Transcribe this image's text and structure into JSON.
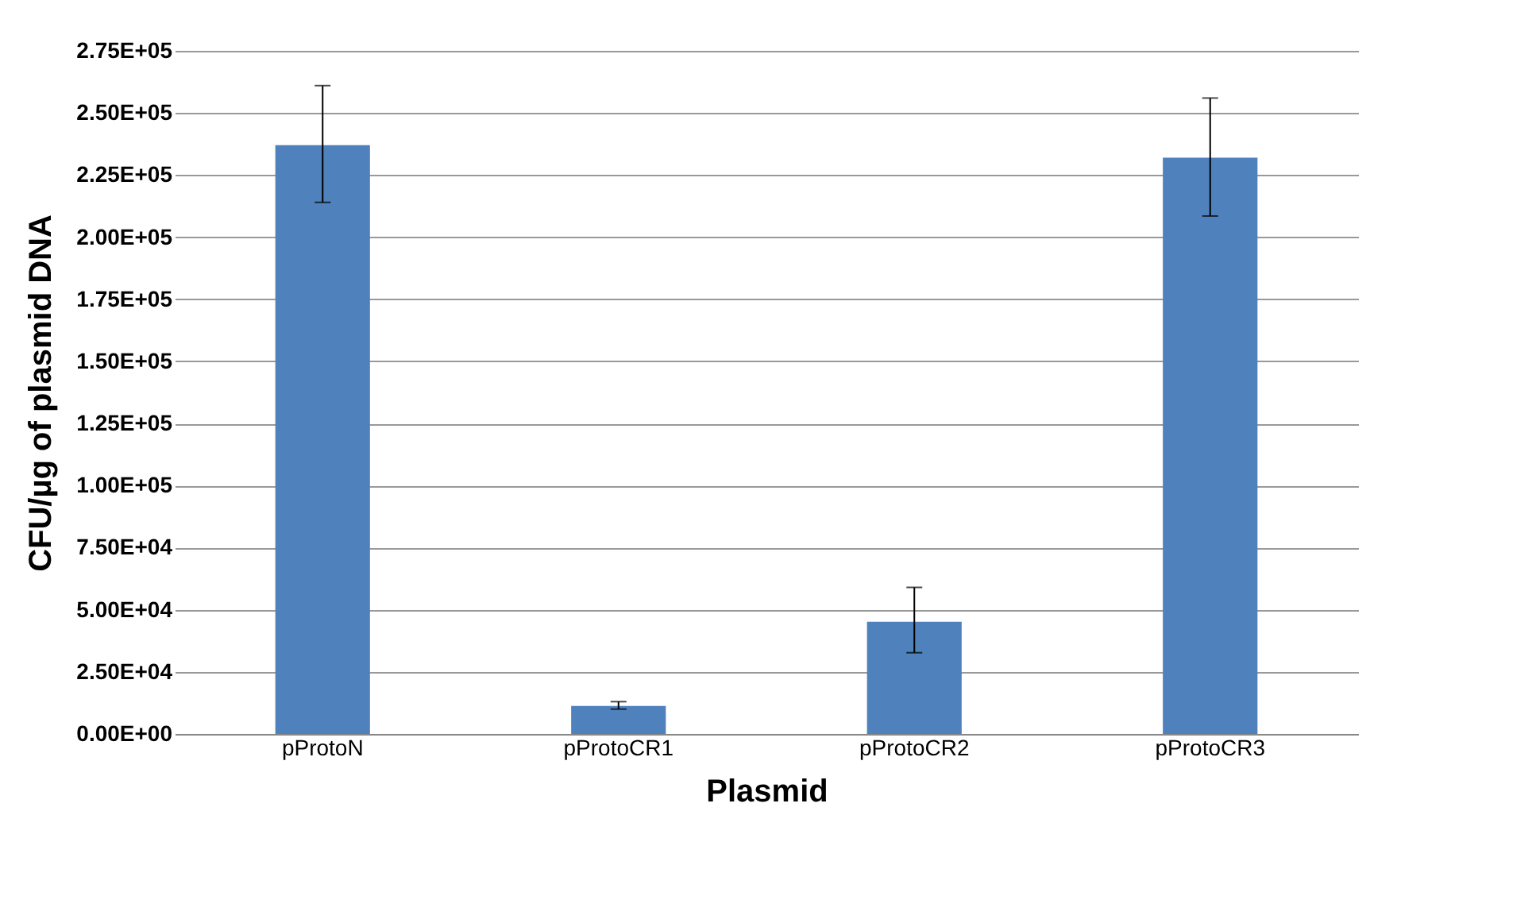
{
  "chart_data": {
    "type": "bar",
    "xlabel": "Plasmid",
    "ylabel": "CFU/µg of plasmid DNA",
    "categories": [
      "pProtoN",
      "pProtoCR1",
      "pProtoCR2",
      "pProtoCR3"
    ],
    "values": [
      237000,
      11300,
      45200,
      232000
    ],
    "errors": [
      [
        214000,
        261000
      ],
      [
        10000,
        13000
      ],
      [
        32700,
        59000
      ],
      [
        208500,
        256000
      ]
    ],
    "color": "#4f81bd",
    "ylim": [
      0,
      275000
    ],
    "yticks": [
      {
        "value": 0,
        "label": "0.00E+00"
      },
      {
        "value": 25000,
        "label": "2.50E+04"
      },
      {
        "value": 50000,
        "label": "5.00E+04"
      },
      {
        "value": 75000,
        "label": "7.50E+04"
      },
      {
        "value": 100000,
        "label": "1.00E+05"
      },
      {
        "value": 125000,
        "label": "1.25E+05"
      },
      {
        "value": 150000,
        "label": "1.50E+05"
      },
      {
        "value": 175000,
        "label": "1.75E+05"
      },
      {
        "value": 200000,
        "label": "2.00E+05"
      },
      {
        "value": 225000,
        "label": "2.25E+05"
      },
      {
        "value": 250000,
        "label": "2.50E+05"
      },
      {
        "value": 275000,
        "label": "2.75E+05"
      }
    ],
    "grid": "y"
  }
}
